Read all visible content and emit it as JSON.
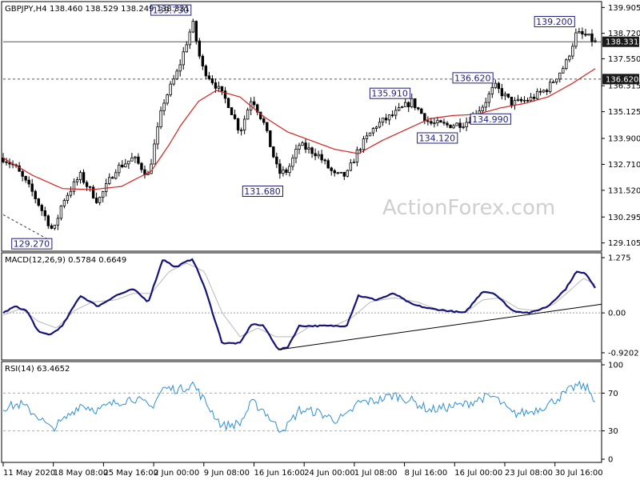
{
  "watermark": "ActionForex.com",
  "chart_data": [
    {
      "type": "candlestick",
      "header": {
        "symbol": "GBPJPY,H4",
        "ohlc": "138.460 138.529 138.249 138.331"
      },
      "ylim": [
        128.8,
        140.1
      ],
      "y_ticks": [
        "139.905",
        "138.720",
        "137.550",
        "136.315",
        "135.125",
        "133.900",
        "132.710",
        "131.520",
        "130.295",
        "129.105"
      ],
      "x_ticks": [
        "11 May 2020",
        "18 May 08:00",
        "25 May 16:00",
        "2 Jun 00:00",
        "9 Jun 08:00",
        "16 Jun 16:00",
        "24 Jun 00:00",
        "1 Jul 08:00",
        "8 Jul 16:00",
        "16 Jul 00:00",
        "23 Jul 08:00",
        "30 Jul 16:00"
      ],
      "price_badges": [
        {
          "text": "138.331",
          "value": 138.331,
          "style": "dark"
        },
        {
          "text": "136.620",
          "value": 136.62,
          "style": "dark"
        }
      ],
      "horizontal_lines": [
        {
          "value": 138.331,
          "style": "solid"
        },
        {
          "value": 136.62,
          "style": "dashed"
        }
      ],
      "annotations": [
        {
          "text": "139.730",
          "value": 139.73,
          "t": 0.32
        },
        {
          "text": "129.270",
          "value": 129.27,
          "t": 0.085
        },
        {
          "text": "131.680",
          "value": 131.68,
          "t": 0.475
        },
        {
          "text": "135.910",
          "value": 135.91,
          "t": 0.69
        },
        {
          "text": "134.120",
          "value": 134.12,
          "t": 0.77
        },
        {
          "text": "136.620",
          "value": 136.62,
          "t": 0.83
        },
        {
          "text": "134.990",
          "value": 134.99,
          "t": 0.86
        },
        {
          "text": "139.200",
          "value": 139.2,
          "t": 0.968
        }
      ],
      "price_anchors": [
        [
          0.0,
          133.0
        ],
        [
          0.02,
          132.6
        ],
        [
          0.05,
          131.4
        ],
        [
          0.075,
          130.1
        ],
        [
          0.085,
          129.6
        ],
        [
          0.1,
          131.0
        ],
        [
          0.13,
          132.2
        ],
        [
          0.16,
          131.0
        ],
        [
          0.19,
          132.5
        ],
        [
          0.22,
          133.0
        ],
        [
          0.245,
          132.2
        ],
        [
          0.27,
          135.5
        ],
        [
          0.295,
          137.0
        ],
        [
          0.32,
          139.2
        ],
        [
          0.335,
          137.2
        ],
        [
          0.36,
          136.3
        ],
        [
          0.38,
          135.5
        ],
        [
          0.4,
          134.2
        ],
        [
          0.42,
          135.8
        ],
        [
          0.44,
          134.6
        ],
        [
          0.465,
          132.3
        ],
        [
          0.48,
          132.4
        ],
        [
          0.5,
          133.6
        ],
        [
          0.53,
          133.2
        ],
        [
          0.56,
          132.2
        ],
        [
          0.58,
          132.2
        ],
        [
          0.6,
          133.4
        ],
        [
          0.63,
          134.5
        ],
        [
          0.66,
          135.0
        ],
        [
          0.69,
          135.6
        ],
        [
          0.72,
          134.6
        ],
        [
          0.75,
          134.5
        ],
        [
          0.78,
          134.6
        ],
        [
          0.81,
          135.4
        ],
        [
          0.83,
          136.3
        ],
        [
          0.86,
          135.5
        ],
        [
          0.89,
          135.7
        ],
        [
          0.92,
          136.2
        ],
        [
          0.95,
          137.3
        ],
        [
          0.968,
          138.7
        ],
        [
          0.985,
          138.6
        ],
        [
          1.0,
          138.3
        ]
      ],
      "ma_anchors": [
        [
          0.0,
          133.0
        ],
        [
          0.05,
          132.2
        ],
        [
          0.1,
          131.6
        ],
        [
          0.15,
          131.55
        ],
        [
          0.2,
          131.7
        ],
        [
          0.25,
          132.4
        ],
        [
          0.28,
          133.6
        ],
        [
          0.3,
          134.5
        ],
        [
          0.33,
          135.6
        ],
        [
          0.36,
          136.1
        ],
        [
          0.4,
          135.8
        ],
        [
          0.44,
          134.9
        ],
        [
          0.48,
          134.2
        ],
        [
          0.52,
          133.8
        ],
        [
          0.56,
          133.4
        ],
        [
          0.6,
          133.2
        ],
        [
          0.64,
          133.8
        ],
        [
          0.68,
          134.3
        ],
        [
          0.72,
          134.8
        ],
        [
          0.76,
          134.95
        ],
        [
          0.8,
          135.0
        ],
        [
          0.84,
          135.3
        ],
        [
          0.88,
          135.5
        ],
        [
          0.92,
          135.8
        ],
        [
          0.96,
          136.4
        ],
        [
          1.0,
          137.1
        ]
      ]
    },
    {
      "type": "line",
      "title": "MACD(12,26,9) 0.5784 0.6649",
      "ylim": [
        -1.05,
        1.35
      ],
      "y_ticks": [
        "1.275",
        "0.00",
        "-0.9202"
      ],
      "macd_anchors": [
        [
          0.0,
          0.0
        ],
        [
          0.02,
          0.15
        ],
        [
          0.04,
          0.05
        ],
        [
          0.06,
          -0.45
        ],
        [
          0.08,
          -0.5
        ],
        [
          0.1,
          -0.3
        ],
        [
          0.13,
          0.4
        ],
        [
          0.16,
          0.15
        ],
        [
          0.19,
          0.4
        ],
        [
          0.22,
          0.55
        ],
        [
          0.245,
          0.25
        ],
        [
          0.27,
          1.25
        ],
        [
          0.29,
          1.05
        ],
        [
          0.32,
          1.25
        ],
        [
          0.34,
          0.6
        ],
        [
          0.37,
          -0.7
        ],
        [
          0.4,
          -0.7
        ],
        [
          0.42,
          -0.25
        ],
        [
          0.44,
          -0.3
        ],
        [
          0.465,
          -0.85
        ],
        [
          0.48,
          -0.8
        ],
        [
          0.5,
          -0.3
        ],
        [
          0.53,
          -0.3
        ],
        [
          0.56,
          -0.3
        ],
        [
          0.58,
          -0.3
        ],
        [
          0.6,
          0.4
        ],
        [
          0.63,
          0.3
        ],
        [
          0.66,
          0.45
        ],
        [
          0.69,
          0.2
        ],
        [
          0.72,
          0.1
        ],
        [
          0.75,
          0.05
        ],
        [
          0.78,
          0.0
        ],
        [
          0.81,
          0.5
        ],
        [
          0.83,
          0.45
        ],
        [
          0.86,
          0.05
        ],
        [
          0.89,
          0.0
        ],
        [
          0.92,
          0.15
        ],
        [
          0.95,
          0.55
        ],
        [
          0.968,
          0.95
        ],
        [
          0.985,
          0.9
        ],
        [
          1.0,
          0.58
        ]
      ],
      "signal_anchors": [
        [
          0.0,
          -0.05
        ],
        [
          0.03,
          0.1
        ],
        [
          0.06,
          -0.2
        ],
        [
          0.09,
          -0.35
        ],
        [
          0.12,
          0.05
        ],
        [
          0.15,
          0.25
        ],
        [
          0.19,
          0.3
        ],
        [
          0.22,
          0.45
        ],
        [
          0.25,
          0.45
        ],
        [
          0.28,
          0.95
        ],
        [
          0.31,
          1.15
        ],
        [
          0.34,
          0.95
        ],
        [
          0.37,
          0.0
        ],
        [
          0.4,
          -0.55
        ],
        [
          0.43,
          -0.35
        ],
        [
          0.46,
          -0.55
        ],
        [
          0.49,
          -0.55
        ],
        [
          0.52,
          -0.3
        ],
        [
          0.56,
          -0.3
        ],
        [
          0.59,
          -0.1
        ],
        [
          0.62,
          0.25
        ],
        [
          0.66,
          0.35
        ],
        [
          0.7,
          0.25
        ],
        [
          0.74,
          0.05
        ],
        [
          0.78,
          0.0
        ],
        [
          0.81,
          0.3
        ],
        [
          0.84,
          0.35
        ],
        [
          0.87,
          0.1
        ],
        [
          0.9,
          0.05
        ],
        [
          0.93,
          0.2
        ],
        [
          0.96,
          0.55
        ],
        [
          0.98,
          0.8
        ],
        [
          1.0,
          0.66
        ]
      ],
      "trendline": [
        [
          0.465,
          -0.85
        ],
        [
          1.0,
          0.2
        ]
      ]
    },
    {
      "type": "line",
      "title": "RSI(14) 63.4652",
      "ylim": [
        0,
        100
      ],
      "y_ticks": [
        "100",
        "70",
        "30",
        "0"
      ],
      "levels": [
        70,
        30
      ],
      "rsi_anchors": [
        [
          0.0,
          55
        ],
        [
          0.03,
          58
        ],
        [
          0.06,
          45
        ],
        [
          0.08,
          32
        ],
        [
          0.1,
          40
        ],
        [
          0.13,
          58
        ],
        [
          0.16,
          52
        ],
        [
          0.19,
          60
        ],
        [
          0.22,
          65
        ],
        [
          0.25,
          55
        ],
        [
          0.27,
          75
        ],
        [
          0.3,
          74
        ],
        [
          0.32,
          80
        ],
        [
          0.34,
          62
        ],
        [
          0.37,
          35
        ],
        [
          0.4,
          38
        ],
        [
          0.42,
          60
        ],
        [
          0.44,
          52
        ],
        [
          0.465,
          32
        ],
        [
          0.48,
          35
        ],
        [
          0.5,
          52
        ],
        [
          0.53,
          50
        ],
        [
          0.56,
          42
        ],
        [
          0.58,
          45
        ],
        [
          0.6,
          60
        ],
        [
          0.63,
          62
        ],
        [
          0.66,
          68
        ],
        [
          0.69,
          62
        ],
        [
          0.72,
          52
        ],
        [
          0.75,
          55
        ],
        [
          0.78,
          58
        ],
        [
          0.81,
          65
        ],
        [
          0.83,
          66
        ],
        [
          0.86,
          48
        ],
        [
          0.89,
          50
        ],
        [
          0.92,
          58
        ],
        [
          0.95,
          70
        ],
        [
          0.968,
          78
        ],
        [
          0.985,
          76
        ],
        [
          1.0,
          63.5
        ]
      ]
    }
  ]
}
